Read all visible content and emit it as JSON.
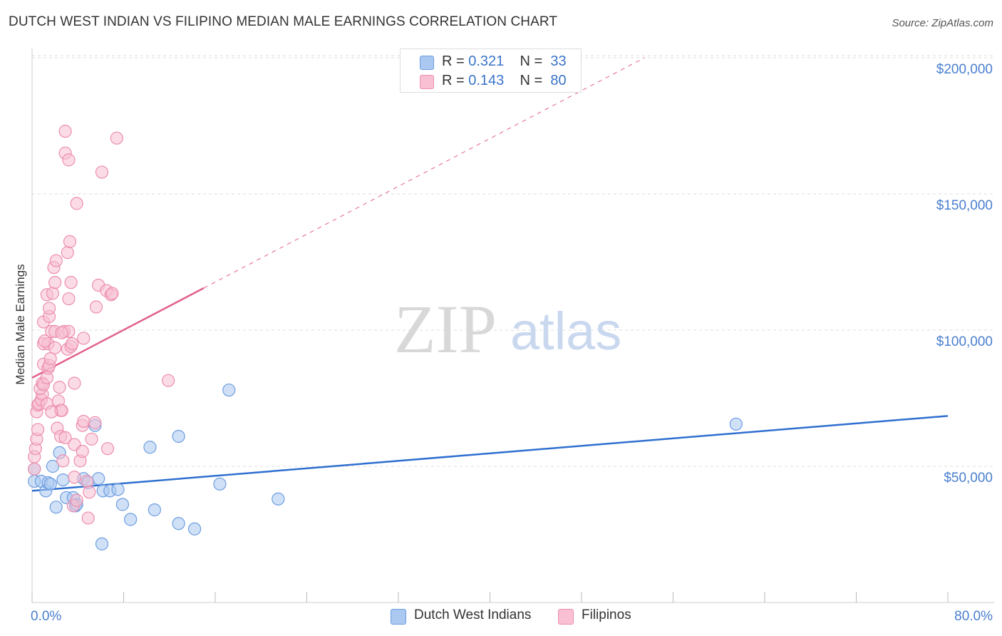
{
  "title": "DUTCH WEST INDIAN VS FILIPINO MEDIAN MALE EARNINGS CORRELATION CHART",
  "source": "Source: ZipAtlas.com",
  "watermark": {
    "part1": "ZIP",
    "part2": "atlas"
  },
  "legend": {
    "rows": [
      {
        "r_label": "R = ",
        "r_value": "0.321",
        "n_label": "N = ",
        "n_value": "33"
      },
      {
        "r_label": "R = ",
        "r_value": "0.143",
        "n_label": "N = ",
        "n_value": "80"
      }
    ]
  },
  "bottom_legend": {
    "series1": "Dutch West Indians",
    "series2": "Filipinos"
  },
  "colors": {
    "blue_fill": "#aac8f0",
    "blue_stroke": "#6d9de0",
    "blue_line": "#2f6fd0",
    "pink_fill": "#f8c0d2",
    "pink_stroke": "#ec8eae",
    "pink_line": "#e2608c",
    "grid": "#dddddd",
    "axis_text": "#4a7fd0"
  },
  "chart_data": {
    "type": "scatter",
    "title": "DUTCH WEST INDIAN VS FILIPINO MEDIAN MALE EARNINGS CORRELATION CHART",
    "xlabel": "",
    "ylabel": "Median Male Earnings",
    "xlim": [
      0,
      80
    ],
    "ylim": [
      0,
      205000
    ],
    "x_tick_labels": [
      "0.0%",
      "80.0%"
    ],
    "y_ticks": [
      50000,
      100000,
      150000,
      200000
    ],
    "y_tick_labels": [
      "$50,000",
      "$100,000",
      "$150,000",
      "$200,000"
    ],
    "grid": true,
    "legend_position": "top-center",
    "series": [
      {
        "name": "Dutch West Indians",
        "color": "blue",
        "r": 0.321,
        "n": 33,
        "trend": {
          "x0": 0,
          "y0": 41000,
          "x1": 80,
          "y1": 68500,
          "solid_to": 80
        },
        "points": [
          [
            0.2,
            49000
          ],
          [
            0.2,
            44500
          ],
          [
            0.8,
            44500
          ],
          [
            1.2,
            41000
          ],
          [
            1.4,
            44000
          ],
          [
            1.8,
            50000
          ],
          [
            2.1,
            35000
          ],
          [
            2.4,
            55000
          ],
          [
            2.7,
            45000
          ],
          [
            3.0,
            38500
          ],
          [
            3.6,
            38500
          ],
          [
            3.8,
            35500
          ],
          [
            4.5,
            45500
          ],
          [
            4.9,
            44000
          ],
          [
            5.5,
            65000
          ],
          [
            5.8,
            45500
          ],
          [
            6.2,
            41000
          ],
          [
            6.8,
            41000
          ],
          [
            7.5,
            41500
          ],
          [
            6.1,
            21500
          ],
          [
            7.9,
            36000
          ],
          [
            8.6,
            30500
          ],
          [
            10.3,
            57000
          ],
          [
            10.7,
            34000
          ],
          [
            12.8,
            61000
          ],
          [
            12.8,
            29000
          ],
          [
            14.2,
            27000
          ],
          [
            16.4,
            43500
          ],
          [
            17.2,
            78000
          ],
          [
            21.5,
            38000
          ],
          [
            61.5,
            65500
          ],
          [
            3.9,
            36000
          ],
          [
            1.6,
            43500
          ]
        ]
      },
      {
        "name": "Filipinos",
        "color": "pink",
        "r": 0.143,
        "n": 80,
        "trend": {
          "x0": 0,
          "y0": 82500,
          "x1": 53.5,
          "y1": 200000,
          "solid_to": 15
        },
        "points": [
          [
            0.2,
            49000
          ],
          [
            0.2,
            53500
          ],
          [
            0.3,
            56500
          ],
          [
            0.4,
            60000
          ],
          [
            0.5,
            63500
          ],
          [
            0.4,
            70000
          ],
          [
            0.5,
            72500
          ],
          [
            0.6,
            73000
          ],
          [
            0.8,
            74500
          ],
          [
            0.9,
            76500
          ],
          [
            0.7,
            78500
          ],
          [
            0.9,
            80500
          ],
          [
            1.0,
            80000
          ],
          [
            1.3,
            73000
          ],
          [
            1.3,
            82500
          ],
          [
            1.0,
            87500
          ],
          [
            1.4,
            86000
          ],
          [
            1.5,
            87000
          ],
          [
            1.6,
            89500
          ],
          [
            1.0,
            95000
          ],
          [
            1.4,
            95000
          ],
          [
            1.7,
            99500
          ],
          [
            2.0,
            99500
          ],
          [
            1.0,
            103000
          ],
          [
            1.5,
            105000
          ],
          [
            1.5,
            108000
          ],
          [
            1.3,
            113000
          ],
          [
            1.8,
            113500
          ],
          [
            2.0,
            117500
          ],
          [
            1.9,
            123000
          ],
          [
            2.1,
            125500
          ],
          [
            2.4,
            79000
          ],
          [
            2.3,
            74000
          ],
          [
            2.5,
            70500
          ],
          [
            2.6,
            70500
          ],
          [
            2.2,
            64000
          ],
          [
            2.5,
            61000
          ],
          [
            2.9,
            60500
          ],
          [
            2.7,
            52000
          ],
          [
            3.1,
            93000
          ],
          [
            2.8,
            99500
          ],
          [
            3.2,
            99500
          ],
          [
            3.4,
            94000
          ],
          [
            3.2,
            111500
          ],
          [
            3.4,
            117500
          ],
          [
            3.1,
            128500
          ],
          [
            3.3,
            132500
          ],
          [
            3.7,
            80500
          ],
          [
            3.7,
            58000
          ],
          [
            4.2,
            52000
          ],
          [
            4.4,
            55500
          ],
          [
            4.4,
            65000
          ],
          [
            4.5,
            97000
          ],
          [
            4.5,
            66500
          ],
          [
            3.6,
            35500
          ],
          [
            3.7,
            46000
          ],
          [
            4.8,
            44500
          ],
          [
            5.0,
            40500
          ],
          [
            4.9,
            31000
          ],
          [
            5.2,
            60000
          ],
          [
            5.5,
            66000
          ],
          [
            5.6,
            108500
          ],
          [
            5.8,
            116500
          ],
          [
            6.5,
            114500
          ],
          [
            6.9,
            113000
          ],
          [
            7.0,
            113500
          ],
          [
            6.6,
            56500
          ],
          [
            3.9,
            146500
          ],
          [
            6.1,
            158000
          ],
          [
            7.4,
            170500
          ],
          [
            2.9,
            165000
          ],
          [
            3.2,
            162500
          ],
          [
            2.9,
            173000
          ],
          [
            11.9,
            81500
          ],
          [
            1.1,
            96000
          ],
          [
            2.0,
            93500
          ],
          [
            3.5,
            95000
          ],
          [
            1.7,
            70000
          ],
          [
            3.9,
            37500
          ],
          [
            2.6,
            99000
          ]
        ]
      }
    ]
  }
}
